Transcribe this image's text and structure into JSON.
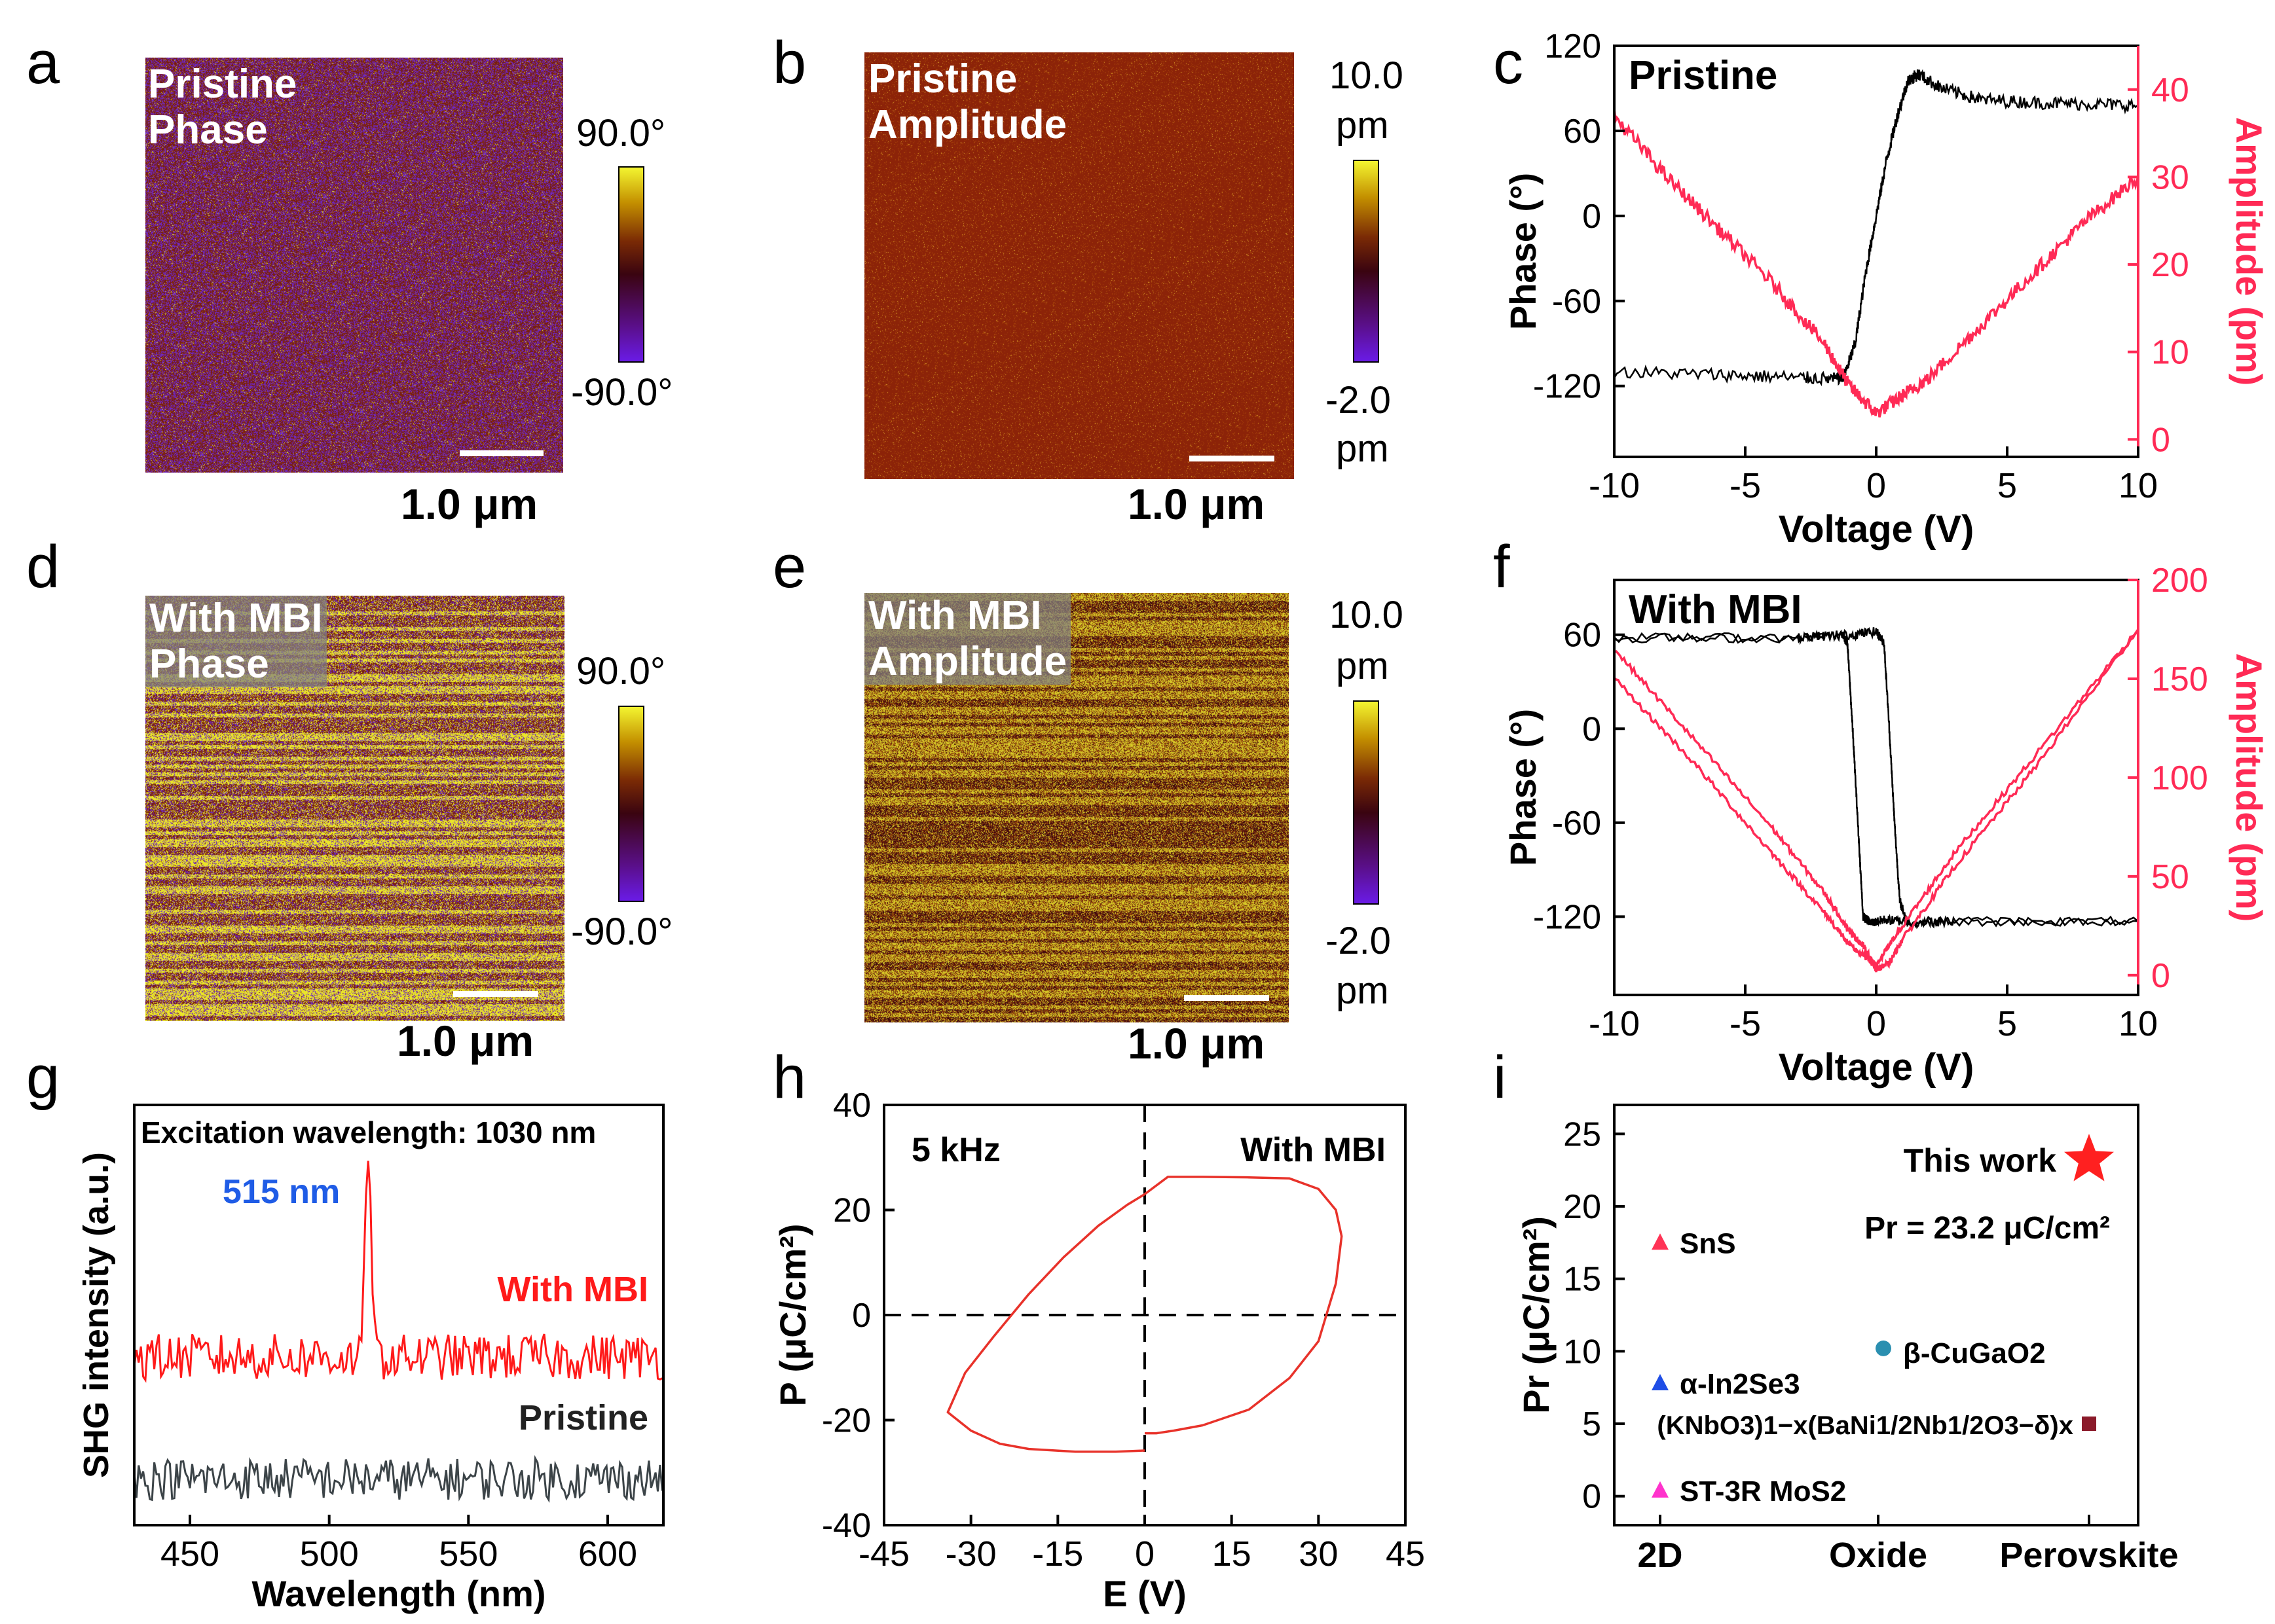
{
  "panels": {
    "a": {
      "letter": "a",
      "label_line1": "Pristine",
      "label_line2": "Phase",
      "scale": "1.0 μm",
      "cbar_top": "90.0°",
      "cbar_bottom": "-90.0°"
    },
    "b": {
      "letter": "b",
      "label_line1": "Pristine",
      "label_line2": "Amplitude",
      "scale": "1.0 μm",
      "cbar_top1": "10.0",
      "cbar_top2": "pm",
      "cbar_bottom1": "-2.0",
      "cbar_bottom2": "pm"
    },
    "c": {
      "letter": "c"
    },
    "d": {
      "letter": "d",
      "label_line1": "With MBI",
      "label_line2": "Phase",
      "scale": "1.0 μm",
      "cbar_top": "90.0°",
      "cbar_bottom": "-90.0°"
    },
    "e": {
      "letter": "e",
      "label_line1": "With MBI",
      "label_line2": "Amplitude",
      "scale": "1.0 μm",
      "cbar_top1": "10.0",
      "cbar_top2": "pm",
      "cbar_bottom1": "-2.0",
      "cbar_bottom2": "pm"
    },
    "f": {
      "letter": "f"
    },
    "g": {
      "letter": "g"
    },
    "h": {
      "letter": "h"
    },
    "i": {
      "letter": "i"
    }
  },
  "colors": {
    "black_trace": "#000000",
    "red_trace": "#ff2a55",
    "shg_red": "#ff1a1a",
    "shg_gray": "#3c4448",
    "pe_loop": "#e8322a"
  },
  "chart_data": [
    {
      "id": "c",
      "type": "line",
      "inset_title": "Pristine",
      "xlabel": "Voltage (V)",
      "ylabel": "Phase (°)",
      "y2label": "Amplitude (pm)",
      "xlim": [
        -10,
        10
      ],
      "ylim": [
        -170,
        120
      ],
      "y2lim": [
        -2,
        45
      ],
      "xticks": [
        -10,
        -5,
        0,
        5,
        10
      ],
      "yticks": [
        -120,
        -60,
        0,
        60,
        120
      ],
      "y2ticks": [
        0,
        10,
        20,
        30,
        40
      ],
      "series": [
        {
          "axis": "left",
          "color": "#000000",
          "x": [
            -10,
            -6,
            -3,
            -1.5,
            -1.2,
            -0.8,
            -0.4,
            0,
            0.4,
            0.8,
            1.2,
            1.6,
            2.5,
            4,
            6,
            8,
            10
          ],
          "y": [
            -110,
            -112,
            -114,
            -115,
            -112,
            -90,
            -40,
            0,
            40,
            70,
            95,
            100,
            90,
            82,
            80,
            79,
            78
          ]
        },
        {
          "axis": "right",
          "color": "#ff2a55",
          "x": [
            -10,
            -8,
            -6,
            -4,
            -2,
            -1,
            0,
            1,
            2,
            4,
            6,
            8,
            10
          ],
          "y": [
            37,
            30,
            24,
            18,
            11,
            6,
            3,
            5,
            7,
            13,
            19,
            25,
            30
          ]
        }
      ]
    },
    {
      "id": "f",
      "type": "line",
      "inset_title": "With MBI",
      "xlabel": "Voltage (V)",
      "ylabel": "Phase (°)",
      "y2label": "Amplitude (pm)",
      "xlim": [
        -10,
        10
      ],
      "ylim": [
        -170,
        95
      ],
      "y2lim": [
        -10,
        200
      ],
      "xticks": [
        -10,
        -5,
        0,
        5,
        10
      ],
      "yticks": [
        -120,
        -60,
        0,
        60
      ],
      "y2ticks": [
        0,
        50,
        100,
        150,
        200
      ],
      "series": [
        {
          "axis": "left",
          "color": "#000000",
          "x": [
            -10,
            -3,
            -1.3,
            -1.1,
            -0.9,
            -0.7,
            -0.5,
            -0.2,
            0.3,
            1,
            3,
            10
          ],
          "y": [
            58,
            58,
            60,
            55,
            0,
            -60,
            -120,
            -124,
            -122,
            -123,
            -123,
            -123
          ]
        },
        {
          "axis": "left",
          "color": "#000000",
          "x": [
            -10,
            -3,
            -1,
            0,
            0.3,
            0.5,
            0.7,
            0.9,
            1.2,
            3,
            10
          ],
          "y": [
            58,
            58,
            60,
            62,
            55,
            0,
            -60,
            -110,
            -124,
            -123,
            -123
          ]
        },
        {
          "axis": "right",
          "color": "#ff2a55",
          "x": [
            -10,
            -7,
            -4,
            -2,
            -1,
            0,
            1,
            3,
            6,
            10
          ],
          "y": [
            150,
            108,
            62,
            32,
            15,
            5,
            25,
            62,
            110,
            175
          ]
        },
        {
          "axis": "right",
          "color": "#ff2a55",
          "x": [
            -10,
            -7,
            -4,
            -2,
            -1,
            -0.5,
            0,
            0.5,
            1,
            3,
            6,
            10
          ],
          "y": [
            165,
            120,
            75,
            42,
            22,
            15,
            3,
            6,
            18,
            55,
            104,
            175
          ]
        }
      ]
    },
    {
      "id": "g",
      "type": "line",
      "xlabel": "Wavelength (nm)",
      "ylabel": "SHG intensity (a.u.)",
      "annotation_top": "Excitation wavelength: 1030 nm",
      "peak_label": "515 nm",
      "xlim": [
        430,
        620
      ],
      "xticks": [
        450,
        500,
        550,
        600
      ],
      "ylim": [
        0,
        10
      ],
      "series": [
        {
          "name": "With MBI",
          "color": "#ff1a1a",
          "baseline": 4.0,
          "noise": 0.55,
          "peak_x": 514,
          "peak_height": 8.3
        },
        {
          "name": "Pristine",
          "color": "#3c4448",
          "baseline": 1.1,
          "noise": 0.5
        }
      ]
    },
    {
      "id": "h",
      "type": "line",
      "xlabel": "E (V)",
      "ylabel": "P (μC/cm²)",
      "label_left": "5 kHz",
      "label_right": "With MBI",
      "xlim": [
        -45,
        45
      ],
      "ylim": [
        -40,
        40
      ],
      "xticks": [
        -45,
        -30,
        -15,
        0,
        15,
        30,
        45
      ],
      "yticks": [
        -40,
        -20,
        0,
        20,
        40
      ],
      "series": [
        {
          "color": "#e8322a",
          "x": [
            0,
            2,
            5,
            10,
            18,
            25,
            30,
            33,
            34,
            33,
            30,
            25,
            18,
            10,
            4,
            0
          ],
          "y": [
            -22.5,
            -22.5,
            -22,
            -21,
            -18,
            -12,
            -5,
            6,
            15,
            20,
            24,
            26,
            26.2,
            26.3,
            26.3,
            23
          ]
        },
        {
          "color": "#e8322a",
          "x": [
            0,
            -3,
            -8,
            -14,
            -20,
            -26,
            -31,
            -34,
            -30,
            -25,
            -20,
            -12,
            -5,
            0
          ],
          "y": [
            23,
            21,
            17,
            11,
            4,
            -4,
            -11,
            -18.5,
            -22,
            -24.5,
            -25.5,
            -26,
            -26,
            -25.8
          ]
        }
      ]
    },
    {
      "id": "i",
      "type": "scatter",
      "ylabel": "Pr (μC/cm²)",
      "categories": [
        "2D",
        "Oxide",
        "Perovskite"
      ],
      "ylim": [
        -2,
        27
      ],
      "yticks": [
        0,
        5,
        10,
        15,
        20,
        25
      ],
      "highlight_label": "This work",
      "highlight_value_label": "Pr = 23.2 μC/cm²",
      "points": [
        {
          "label": "SnS",
          "category": "2D",
          "y": 17.5,
          "color": "#ff3355",
          "marker": "triangle"
        },
        {
          "label": "α-In2Se3",
          "category": "2D",
          "y": 7.8,
          "color": "#1f4ee6",
          "marker": "triangle"
        },
        {
          "label": "ST-3R MoS2",
          "category": "2D",
          "y": 0.4,
          "color": "#ff33cc",
          "marker": "triangle"
        },
        {
          "label": "β-CuGaO2",
          "category": "Oxide",
          "y": 10.2,
          "color": "#2a8fb0",
          "marker": "circle"
        },
        {
          "label": "(KNbO3)1−x(BaNi1/2Nb1/2O3−δ)x",
          "category": "Perovskite",
          "y": 5.0,
          "color": "#8b1a2a",
          "marker": "square"
        },
        {
          "label": "This work",
          "category": "Perovskite",
          "y": 23.2,
          "color": "#ff2020",
          "marker": "star"
        }
      ]
    }
  ]
}
